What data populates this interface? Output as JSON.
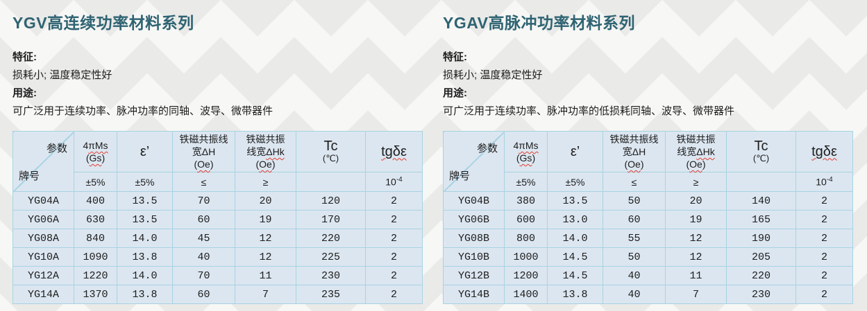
{
  "colors": {
    "title_accent": "#2e6372",
    "table_fill": "#dce6f0",
    "table_border": "#a6d3e3",
    "spellcheck_squiggle": "#e23b2e"
  },
  "sections": [
    {
      "title": "YGV高连续功率材料系列",
      "features_label": "特征:",
      "features_text": "损耗小; 温度稳定性好",
      "usage_label": "用途:",
      "usage_text": "可广泛用于连续功率、脉冲功率的同轴、波导、微带器件",
      "rows": [
        [
          "YG04A",
          "400",
          "13.5",
          "70",
          "20",
          "120",
          "2"
        ],
        [
          "YG06A",
          "630",
          "13.5",
          "60",
          "19",
          "170",
          "2"
        ],
        [
          "YG08A",
          "840",
          "14.0",
          "45",
          "12",
          "220",
          "2"
        ],
        [
          "YG10A",
          "1090",
          "13.8",
          "40",
          "12",
          "225",
          "2"
        ],
        [
          "YG12A",
          "1220",
          "14.0",
          "70",
          "11",
          "230",
          "2"
        ],
        [
          "YG14A",
          "1370",
          "13.8",
          "60",
          "7",
          "235",
          "2"
        ]
      ]
    },
    {
      "title": "YGAV高脉冲功率材料系列",
      "features_label": "特征:",
      "features_text": "损耗小; 温度稳定性好",
      "usage_label": "用途:",
      "usage_text": "可广泛用于连续功率、脉冲功率的低损耗同轴、波导、微带器件",
      "rows": [
        [
          "YG04B",
          "380",
          "13.5",
          "50",
          "20",
          "140",
          "2"
        ],
        [
          "YG06B",
          "600",
          "13.0",
          "60",
          "19",
          "165",
          "2"
        ],
        [
          "YG08B",
          "800",
          "14.0",
          "55",
          "12",
          "190",
          "2"
        ],
        [
          "YG10B",
          "1000",
          "14.5",
          "50",
          "12",
          "205",
          "2"
        ],
        [
          "YG12B",
          "1200",
          "14.5",
          "40",
          "11",
          "220",
          "2"
        ],
        [
          "YG14B",
          "1400",
          "13.8",
          "40",
          "7",
          "230",
          "2"
        ]
      ]
    }
  ],
  "table_header": {
    "corner_param": "参数",
    "corner_brand": "牌号",
    "ms_prefix": "4",
    "ms_wavy": "πMs",
    "ms_unit_open": "(",
    "ms_unit_wavy": "Gs",
    "ms_unit_close": ")",
    "epsilon": "ε’",
    "dh_line1": "铁磁共振线",
    "dh_line2": "宽ΔH",
    "dh_unit_open": "(",
    "dh_unit_wavy": "Oe",
    "dh_unit_close": ")",
    "dhk_line1": "铁磁共振",
    "dhk_line2_plain": "线宽",
    "dhk_line2_wavy": "ΔHk",
    "dhk_unit_open": "(",
    "dhk_unit_wavy": "Oe",
    "dhk_unit_close": ")",
    "tc": "Tc",
    "tc_unit": "(℃)",
    "tgde": "tgδε",
    "sub_ms": "±5%",
    "sub_eps": "±5%",
    "sub_dh": "≤",
    "sub_dhk": "≥",
    "sub_tc": "",
    "sub_tgde_base": "10",
    "sub_tgde_sup": "-4"
  }
}
